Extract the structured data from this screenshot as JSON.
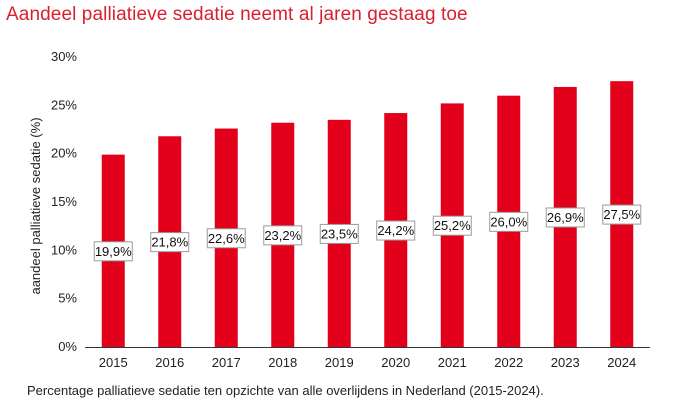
{
  "title": "Aandeel palliatieve sedatie neemt al jaren gestaag toe",
  "caption": "Percentage palliatieve sedatie ten opzichte van alle overlijdens in Nederland (2015-2024).",
  "colors": {
    "bar": "#e3001b",
    "title": "#d8202f"
  },
  "chart_data": {
    "type": "bar",
    "title": "Aandeel palliatieve sedatie neemt al jaren gestaag toe",
    "xlabel": "",
    "ylabel": "aandeel palliatieve sedatie (%)",
    "categories": [
      "2015",
      "2016",
      "2017",
      "2018",
      "2019",
      "2020",
      "2021",
      "2022",
      "2023",
      "2024"
    ],
    "values": [
      19.9,
      21.8,
      22.6,
      23.2,
      23.5,
      24.2,
      25.2,
      26.0,
      26.9,
      27.5
    ],
    "data_labels": [
      "19,9%",
      "21,8%",
      "22,6%",
      "23,2%",
      "23,5%",
      "24,2%",
      "25,2%",
      "26,0%",
      "26,9%",
      "27,5%"
    ],
    "ylim": [
      0,
      30
    ],
    "yticks": [
      0,
      5,
      10,
      15,
      20,
      25,
      30
    ],
    "ytick_labels": [
      "0%",
      "5%",
      "10%",
      "15%",
      "20%",
      "25%",
      "30%"
    ],
    "grid": false,
    "legend": "none"
  }
}
